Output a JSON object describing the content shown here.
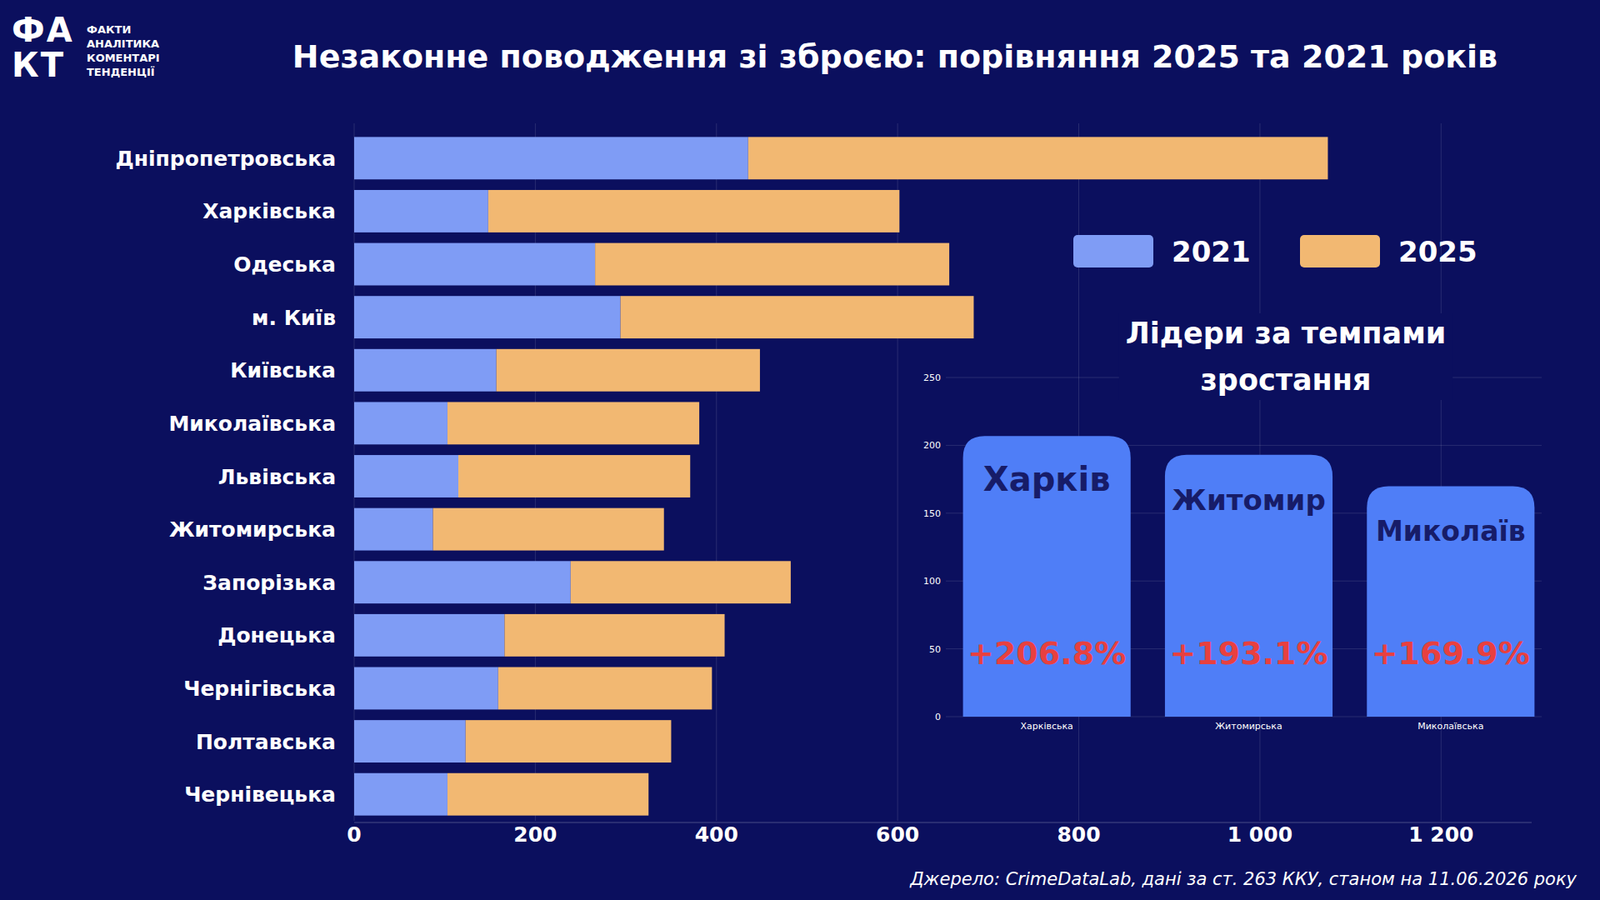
{
  "chart_data": [
    {
      "type": "bar",
      "title": "Незаконне поводження зі зброєю: порівняння 2025 та 2021 років",
      "orientation": "horizontal",
      "stacked": true,
      "grid": true,
      "legend": "right",
      "categories": [
        "Дніпропетровська",
        "Харківська",
        "Одеська",
        "м. Київ",
        "Київська",
        "Миколаївська",
        "Львівська",
        "Житомирська",
        "Запорізька",
        "Донецька",
        "Чернігівська",
        "Полтавська",
        "Чернівецька"
      ],
      "series": [
        {
          "name": "2021",
          "color": "#7f9cf5",
          "values": [
            435,
            148,
            266,
            294,
            157,
            103,
            115,
            87,
            239,
            166,
            159,
            123,
            103
          ]
        },
        {
          "name": "2025",
          "color": "#f2b872",
          "values": [
            640,
            454,
            391,
            390,
            291,
            278,
            256,
            255,
            243,
            243,
            236,
            227,
            222
          ]
        }
      ],
      "xlim": [
        0,
        1300
      ],
      "xticks": [
        0,
        200,
        400,
        600,
        800,
        {
          "value": 1000,
          "label": "1 000"
        },
        {
          "value": 1200,
          "label": "1 200"
        }
      ]
    },
    {
      "type": "bar",
      "title": "Лідери за темпами зростання",
      "categories": [
        "Харківська",
        "Житомирська",
        "Миколаївська"
      ],
      "values": [
        206.8,
        193.1,
        169.9
      ],
      "value_labels": [
        "+206.8%",
        "+193.1%",
        "+169.9%"
      ],
      "annotations": [
        "Харків",
        "Житомир",
        "Миколаїв"
      ],
      "color": "#4f7ef7",
      "data_labels": true,
      "grid": true,
      "ylim": [
        0,
        250
      ],
      "yticks": [
        0,
        50,
        100,
        150,
        200,
        250
      ]
    }
  ],
  "logo": {
    "mark": [
      "ФА",
      "КТ"
    ],
    "lines": [
      "ФАКТИ",
      "АНАЛІТИКА",
      "КОМЕНТАРІ",
      "ТЕНДЕНЦІЇ"
    ]
  },
  "source": "Джерело: CrimeDataLab, дані за ст. 263 ККУ, станом на 11.06.2026 року"
}
